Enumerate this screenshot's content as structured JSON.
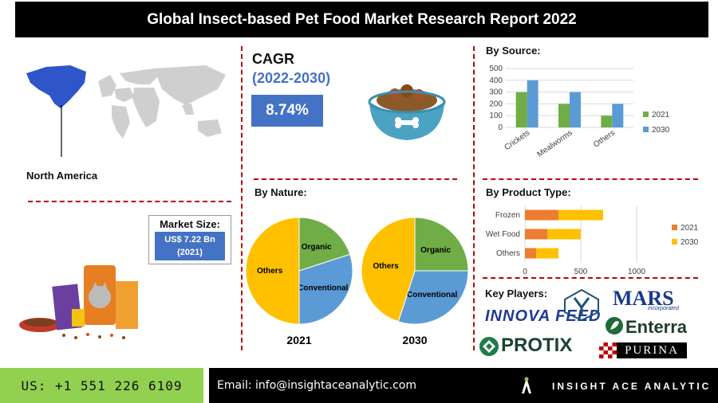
{
  "title": "Global Insect-based Pet Food Market Research Report 2022",
  "region": {
    "label": "North America"
  },
  "cagr": {
    "heading": "CAGR",
    "period": "(2022-2030)",
    "value": "8.74%"
  },
  "market_size": {
    "heading": "Market Size:",
    "value": "US$ 7.22 Bn",
    "year": "(2021)"
  },
  "sections": {
    "by_source": "By Source:",
    "by_nature": "By Nature:",
    "by_product": "By Product Type:",
    "key_players": "Key Players:"
  },
  "key_players": [
    "INNOVA FEED",
    "MARS",
    "incorporated",
    "Enterra",
    "PROTIX",
    "PURINA"
  ],
  "footer": {
    "phone": "US: +1 551 226 6109",
    "email": "Email: info@insightaceanalytic.com",
    "brand": "INSIGHT ACE ANALYTIC"
  },
  "colors": {
    "green": "#70ad47",
    "blue": "#5b9bd5",
    "orange": "#ed7d31",
    "yellow": "#ffc000",
    "accent": "#4472c4",
    "dash": "#c00000"
  },
  "chart_data": [
    {
      "type": "bar",
      "title": "By Source:",
      "categories": [
        "Crickets",
        "Mealworms",
        "Others"
      ],
      "series": [
        {
          "name": "2021",
          "values": [
            300,
            200,
            100
          ]
        },
        {
          "name": "2030",
          "values": [
            400,
            300,
            200
          ]
        }
      ],
      "ylim": [
        0,
        500
      ],
      "yticks": [
        0,
        100,
        200,
        300,
        400,
        500
      ],
      "grid": true,
      "legend": "right"
    },
    {
      "type": "bar",
      "orientation": "horizontal",
      "stacked": true,
      "title": "By Product Type:",
      "categories": [
        "Frozen",
        "Wet Food",
        "Others"
      ],
      "series": [
        {
          "name": "2021",
          "values": [
            300,
            200,
            100
          ]
        },
        {
          "name": "2030",
          "values": [
            400,
            300,
            200
          ]
        }
      ],
      "xlim": [
        0,
        1000
      ],
      "xticks": [
        0,
        500,
        1000
      ],
      "grid": true,
      "legend": "right"
    },
    {
      "type": "pie",
      "title": "By Nature:",
      "caption": "2021",
      "labels": [
        "Organic",
        "Conventional",
        "Others"
      ],
      "values": [
        20,
        30,
        50
      ]
    },
    {
      "type": "pie",
      "caption": "2030",
      "labels": [
        "Organic",
        "Conventional",
        "Others"
      ],
      "values": [
        25,
        30,
        45
      ]
    }
  ]
}
